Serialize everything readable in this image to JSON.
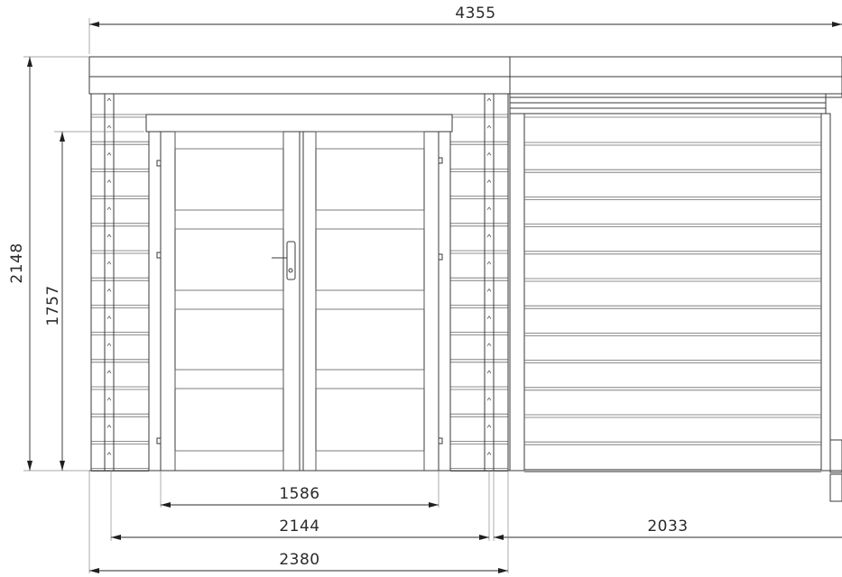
{
  "dimensions": {
    "overall_width": "4355",
    "overall_height": "2148",
    "door_height": "1757",
    "door_width": "1586",
    "left_section_inner": "2144",
    "right_section": "2033",
    "left_section_outer": "2380"
  }
}
